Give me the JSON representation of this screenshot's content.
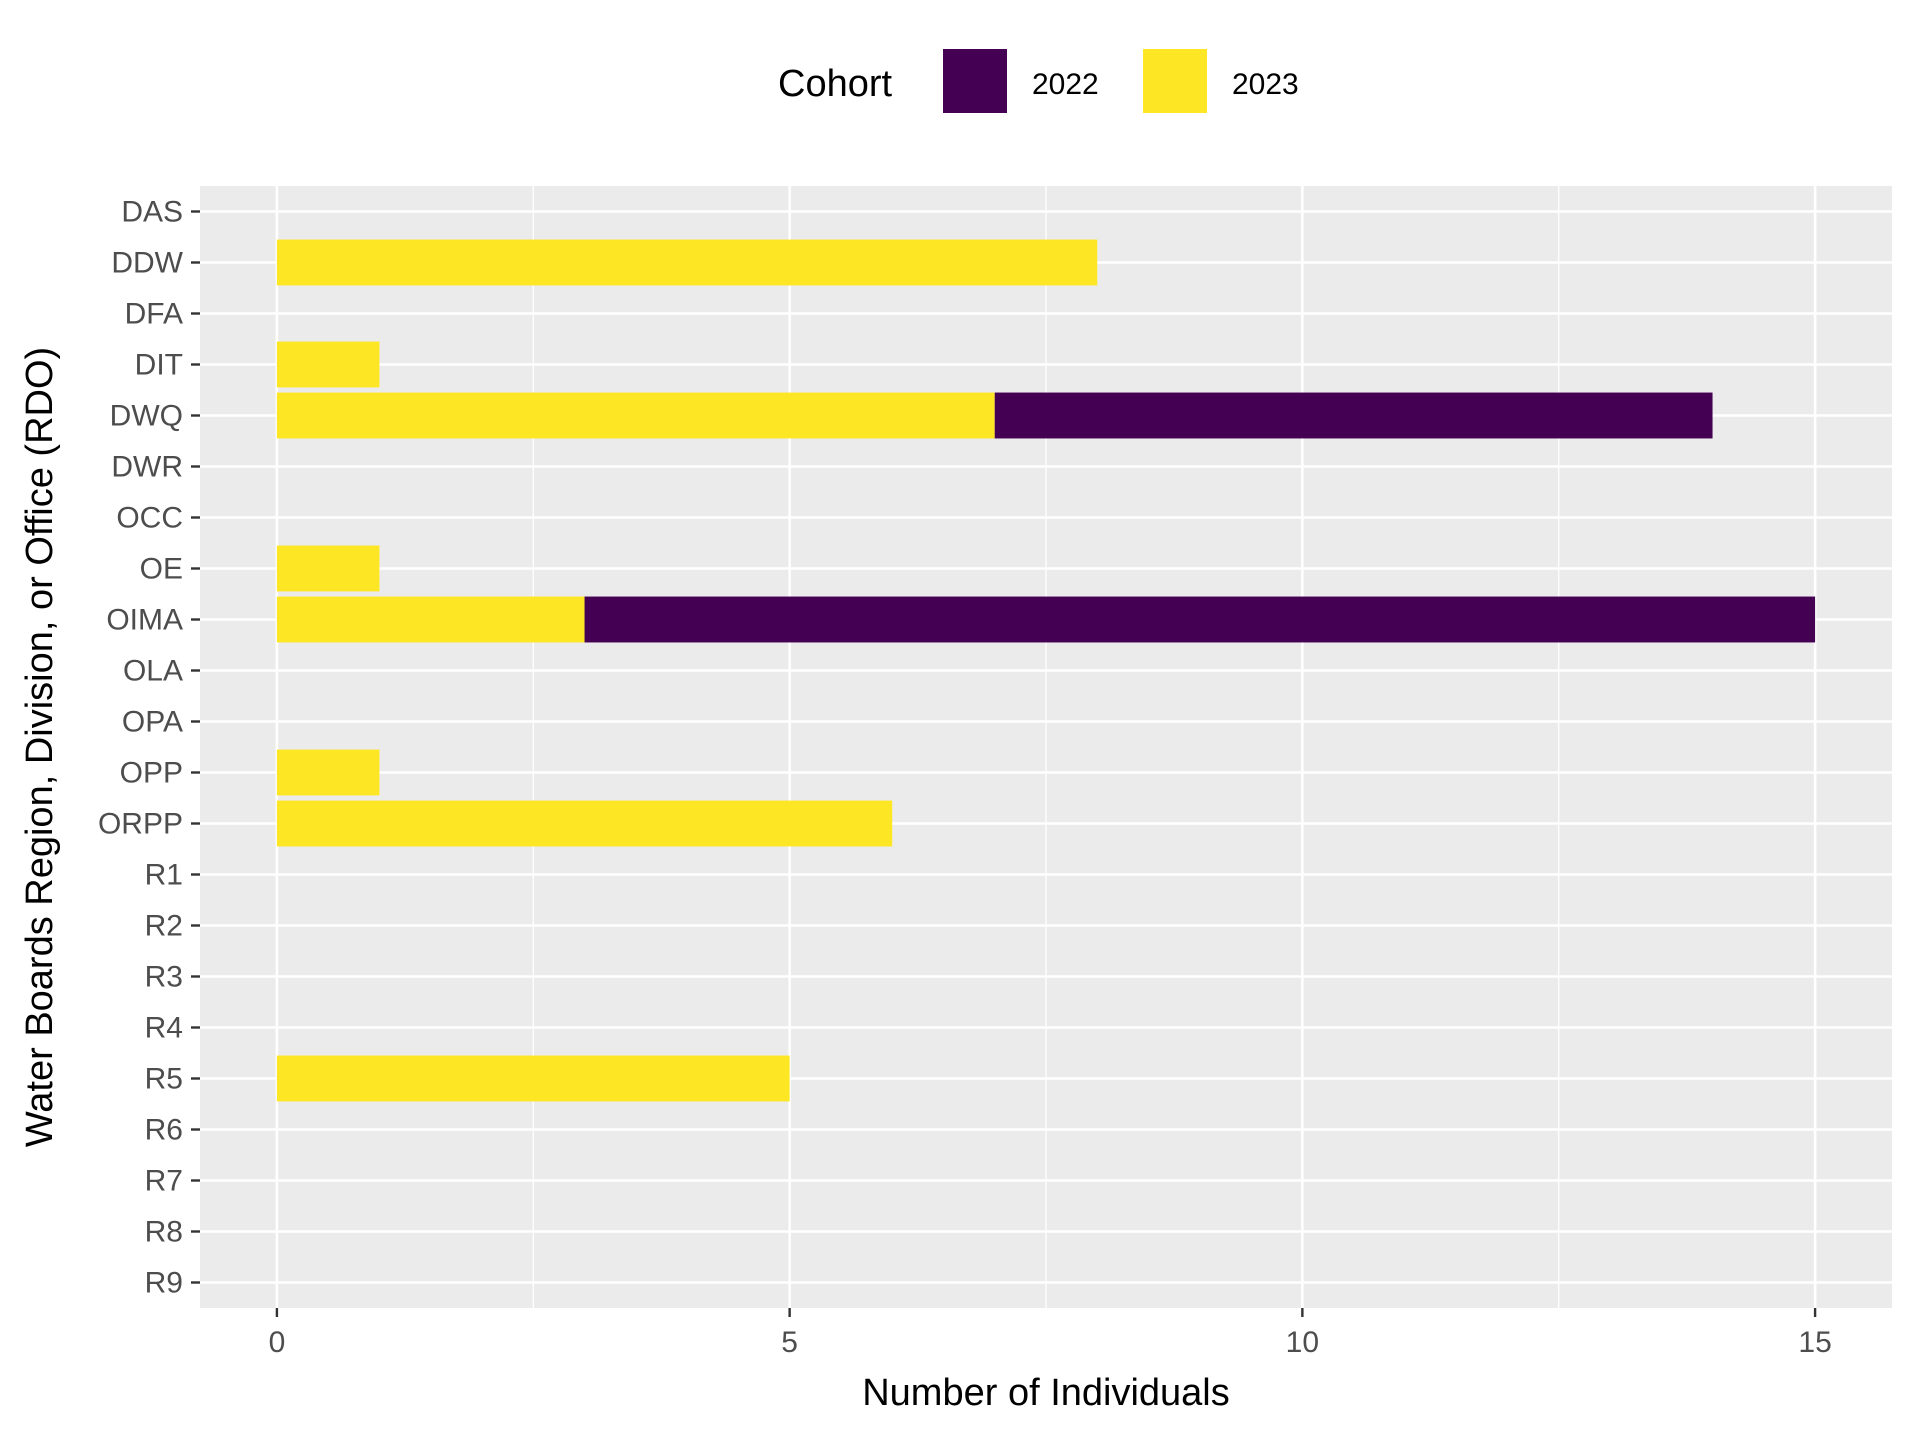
{
  "chart_data": {
    "type": "bar",
    "orientation": "horizontal",
    "stacked": true,
    "categories": [
      "DAS",
      "DDW",
      "DFA",
      "DIT",
      "DWQ",
      "DWR",
      "OCC",
      "OE",
      "OIMA",
      "OLA",
      "OPA",
      "OPP",
      "ORPP",
      "R1",
      "R2",
      "R3",
      "R4",
      "R5",
      "R6",
      "R7",
      "R8",
      "R9"
    ],
    "series": [
      {
        "name": "2023",
        "color": "#FDE725",
        "values": [
          0,
          8,
          0,
          1,
          7,
          0,
          0,
          1,
          3,
          0,
          0,
          1,
          6,
          0,
          0,
          0,
          0,
          5,
          0,
          0,
          0,
          0
        ]
      },
      {
        "name": "2022",
        "color": "#440154",
        "values": [
          0,
          0,
          0,
          0,
          7,
          0,
          0,
          0,
          12,
          0,
          0,
          0,
          0,
          0,
          0,
          0,
          0,
          0,
          0,
          0,
          0,
          0
        ]
      }
    ],
    "xlabel": "Number of Individuals",
    "ylabel": "Water Boards Region, Division, or Office (RDO)",
    "xlim": [
      -0.75,
      15.75
    ],
    "xticks": [
      0,
      5,
      10,
      15
    ],
    "grid": true,
    "legend": {
      "title": "Cohort",
      "position": "top",
      "entries": [
        {
          "label": "2022",
          "color": "#440154"
        },
        {
          "label": "2023",
          "color": "#FDE725"
        }
      ]
    }
  }
}
